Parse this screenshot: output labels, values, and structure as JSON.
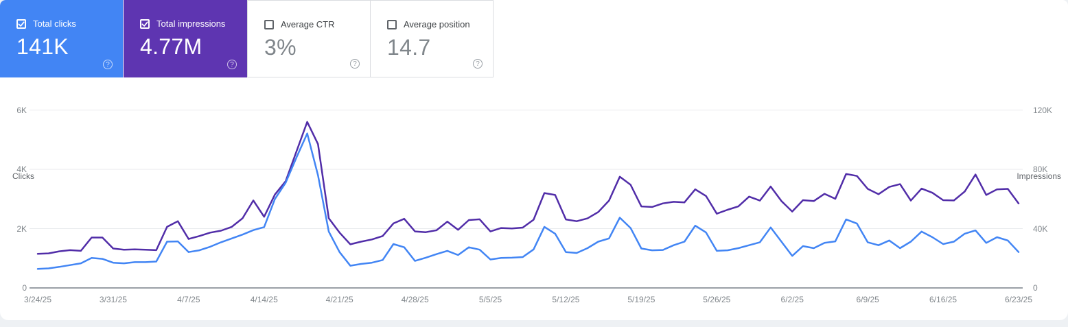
{
  "page": {
    "background": "#eef1f4",
    "surface_background": "#ffffff"
  },
  "metric_cards": [
    {
      "id": "total-clicks",
      "label": "Total clicks",
      "value": "141K",
      "checked": true,
      "selected": true,
      "background": "#4285f4"
    },
    {
      "id": "total-impressions",
      "label": "Total impressions",
      "value": "4.77M",
      "checked": true,
      "selected": true,
      "background": "#5e35b1"
    },
    {
      "id": "average-ctr",
      "label": "Average CTR",
      "value": "3%",
      "checked": false,
      "selected": false,
      "background": "#ffffff"
    },
    {
      "id": "average-position",
      "label": "Average position",
      "value": "14.7",
      "checked": false,
      "selected": false,
      "background": "#ffffff"
    }
  ],
  "help_icon_glyph": "?",
  "chart_data": {
    "type": "line",
    "title": "",
    "grid": "horizontal-only",
    "legend": "none",
    "left_axis": {
      "title": "Clicks",
      "ticks": [
        "0",
        "2K",
        "4K",
        "6K"
      ],
      "range": [
        0,
        6000
      ]
    },
    "right_axis": {
      "title": "Impressions",
      "ticks": [
        "0",
        "40K",
        "80K",
        "120K"
      ],
      "range": [
        0,
        120000
      ]
    },
    "x_tick_labels": [
      "3/24/25",
      "3/31/25",
      "4/7/25",
      "4/14/25",
      "4/21/25",
      "4/28/25",
      "5/5/25",
      "5/12/25",
      "5/19/25",
      "5/26/25",
      "6/2/25",
      "6/9/25",
      "6/16/25",
      "6/23/25"
    ],
    "x_tick_indices": [
      0,
      7,
      14,
      21,
      28,
      35,
      42,
      49,
      56,
      63,
      70,
      77,
      84,
      91
    ],
    "points_per_week": 7,
    "series": [
      {
        "name": "Clicks",
        "axis": "left",
        "color": "#4285f4",
        "values": [
          640,
          660,
          710,
          770,
          830,
          1010,
          980,
          850,
          830,
          870,
          870,
          890,
          1560,
          1570,
          1210,
          1270,
          1390,
          1540,
          1670,
          1800,
          1950,
          2050,
          3000,
          3550,
          4400,
          5210,
          3800,
          1900,
          1210,
          750,
          810,
          850,
          940,
          1480,
          1370,
          910,
          1020,
          1140,
          1250,
          1110,
          1370,
          1290,
          960,
          1010,
          1020,
          1040,
          1300,
          2060,
          1830,
          1210,
          1180,
          1340,
          1560,
          1670,
          2370,
          2020,
          1330,
          1270,
          1280,
          1440,
          1560,
          2100,
          1870,
          1250,
          1270,
          1340,
          1440,
          1540,
          2040,
          1560,
          1080,
          1410,
          1340,
          1520,
          1570,
          2310,
          2170,
          1540,
          1440,
          1600,
          1340,
          1560,
          1900,
          1710,
          1480,
          1560,
          1830,
          1940,
          1520,
          1710,
          1600,
          1210
        ]
      },
      {
        "name": "Impressions",
        "axis": "right",
        "color": "#512da8",
        "values": [
          23000,
          23300,
          24700,
          25500,
          25000,
          34000,
          34000,
          26600,
          25800,
          26000,
          25800,
          25500,
          41200,
          45000,
          33000,
          35000,
          37300,
          38600,
          41200,
          47000,
          59000,
          48000,
          63000,
          72000,
          92000,
          112000,
          97000,
          47000,
          37300,
          29400,
          31200,
          32700,
          35000,
          43500,
          46600,
          38100,
          37600,
          38900,
          44700,
          39200,
          45800,
          46300,
          38100,
          40400,
          40100,
          40700,
          46000,
          64000,
          62700,
          46200,
          45000,
          46900,
          51200,
          58900,
          75000,
          69600,
          55000,
          54600,
          57000,
          58100,
          57700,
          66500,
          62000,
          50100,
          52700,
          55000,
          61600,
          58900,
          68400,
          58600,
          51500,
          59200,
          58600,
          63500,
          60100,
          76900,
          75500,
          66800,
          63200,
          68100,
          70000,
          58900,
          67000,
          64200,
          59200,
          59000,
          65000,
          76500,
          62700,
          66500,
          66800,
          57000
        ]
      }
    ],
    "colors": {
      "gridline": "#e8eaed",
      "baseline": "#9aa0a6",
      "tick_text": "#80868b",
      "axis_title_text": "#5f6368"
    }
  }
}
